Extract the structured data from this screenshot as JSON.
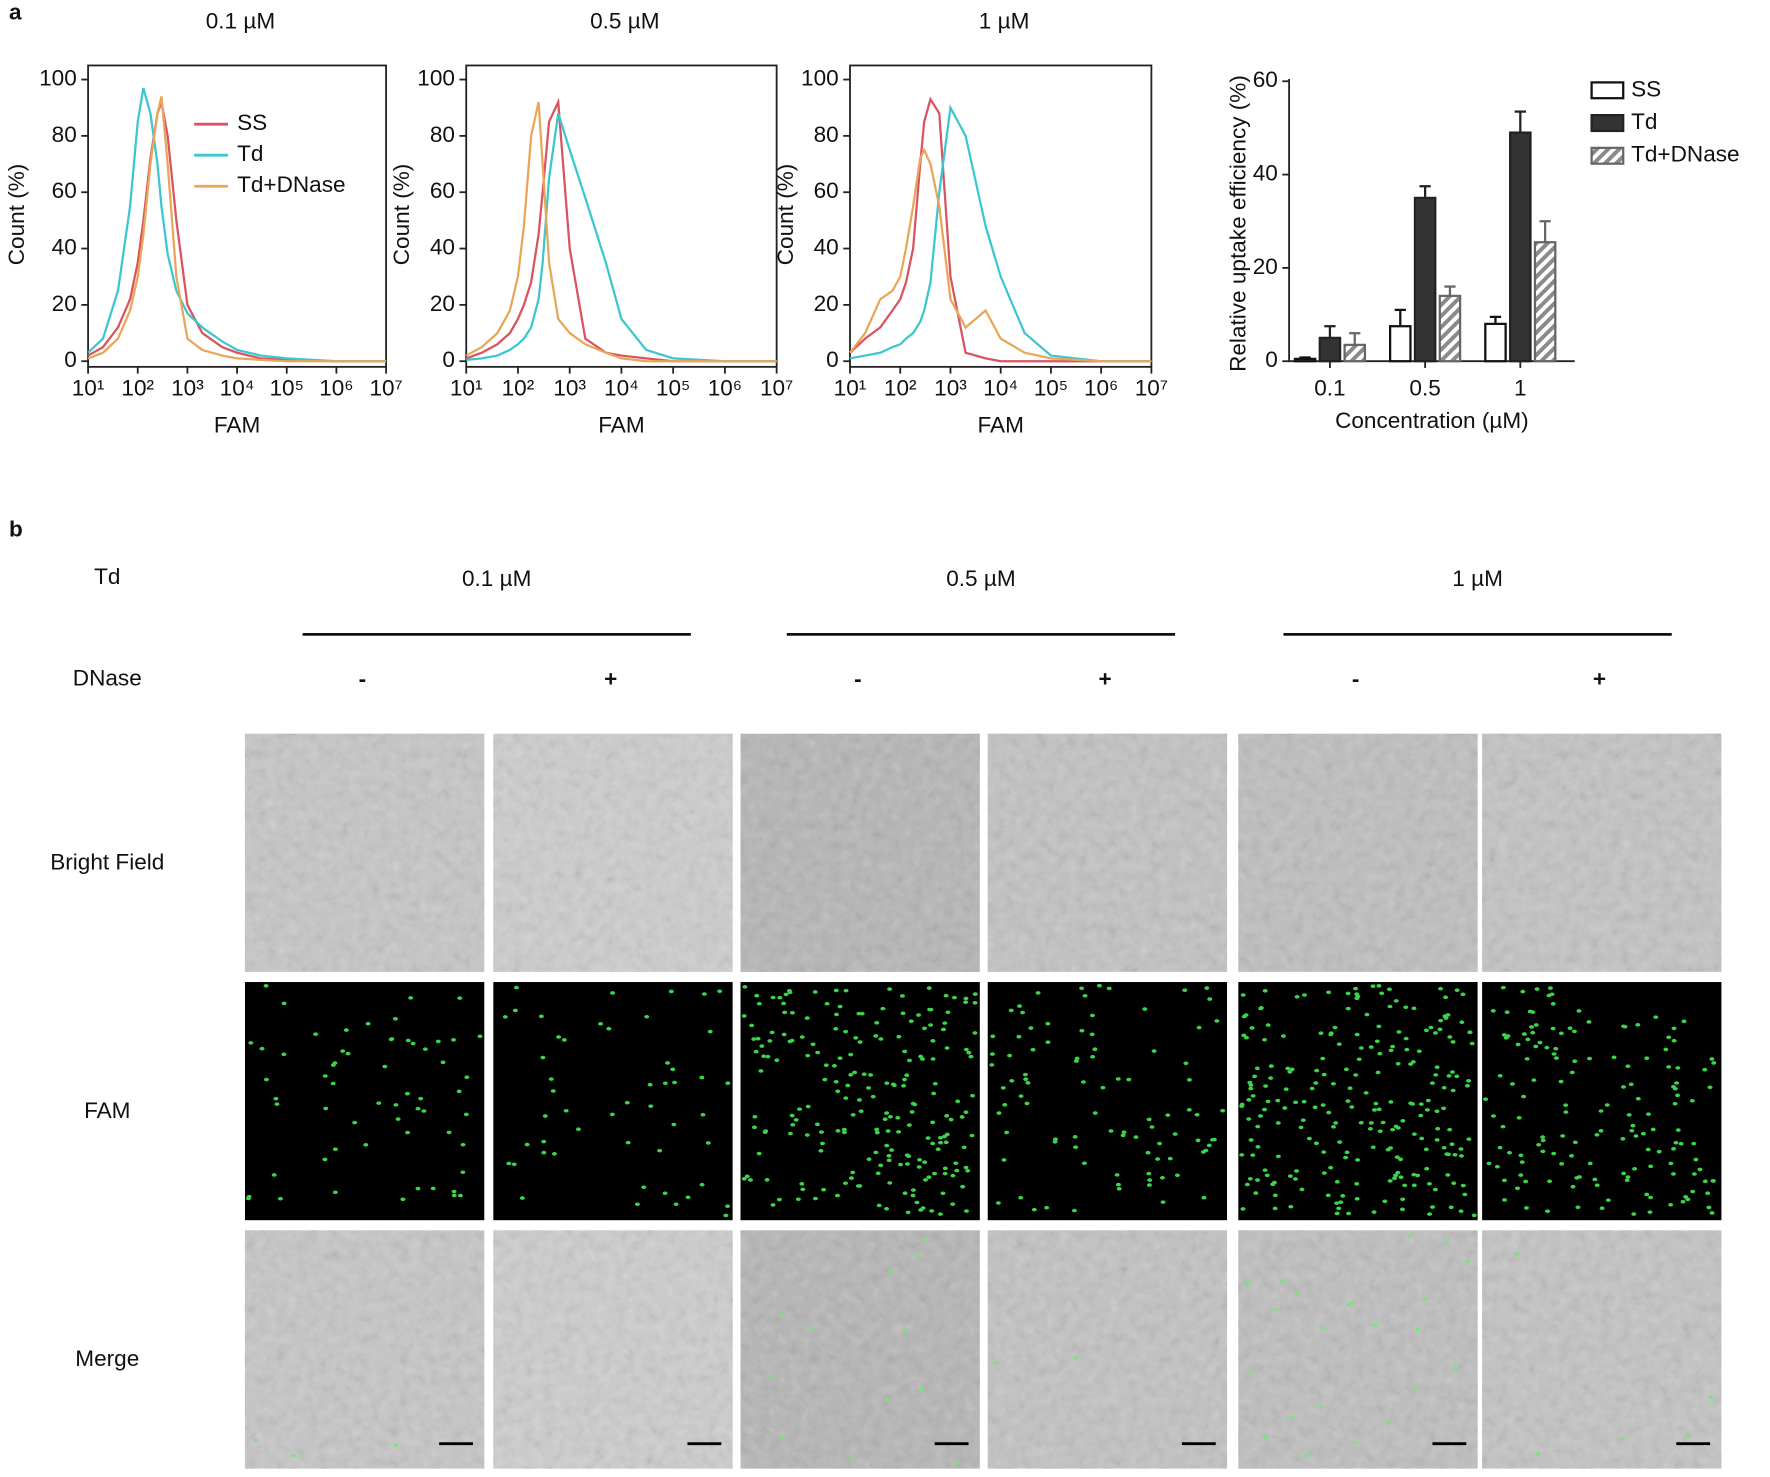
{
  "panel_a": {
    "label": "a"
  },
  "chart_data": [
    {
      "type": "line",
      "title": "0.1 µM",
      "xlabel": "FAM",
      "ylabel": "Count (%)",
      "xscale": "log",
      "legend": true,
      "legend_position": "upper right",
      "x": [
        10,
        20,
        40,
        70,
        100,
        130,
        180,
        250,
        300,
        400,
        600,
        1000,
        2000,
        5000,
        10000,
        30000,
        100000,
        1000000,
        10000000
      ],
      "series": [
        {
          "name": "SS",
          "color": "#d9545f",
          "values": [
            2,
            5,
            12,
            22,
            35,
            50,
            72,
            88,
            92,
            80,
            50,
            20,
            10,
            5,
            3,
            1,
            0.5,
            0,
            0
          ]
        },
        {
          "name": "Td",
          "color": "#3cc6d0",
          "values": [
            3,
            8,
            25,
            55,
            85,
            97,
            88,
            70,
            55,
            38,
            25,
            17,
            12,
            7,
            4,
            2,
            1,
            0,
            0
          ]
        },
        {
          "name": "Td+DNase",
          "color": "#e8a65a",
          "values": [
            1,
            3,
            8,
            18,
            30,
            45,
            70,
            88,
            94,
            70,
            30,
            8,
            4,
            2,
            1,
            0.5,
            0,
            0,
            0
          ]
        }
      ],
      "xlim": [
        10,
        10000000
      ],
      "xticks": [
        {
          "value": 10,
          "label": "10¹"
        },
        {
          "value": 100,
          "label": "10²"
        },
        {
          "value": 1000,
          "label": "10³"
        },
        {
          "value": 10000,
          "label": "10⁴"
        },
        {
          "value": 100000,
          "label": "10⁵"
        },
        {
          "value": 1000000,
          "label": "10⁶"
        },
        {
          "value": 10000000,
          "label": "10⁷"
        }
      ],
      "ylim": [
        -2,
        105
      ],
      "yticks": [
        0,
        20,
        40,
        60,
        80,
        100
      ]
    },
    {
      "type": "line",
      "title": "0.5 µM",
      "xlabel": "FAM",
      "ylabel": "Count (%)",
      "xscale": "log",
      "legend": false,
      "x": [
        10,
        20,
        40,
        70,
        100,
        130,
        180,
        250,
        300,
        400,
        600,
        1000,
        2000,
        5000,
        10000,
        30000,
        100000,
        1000000,
        10000000
      ],
      "series": [
        {
          "color": "#d9545f",
          "values": [
            1,
            3,
            6,
            10,
            15,
            20,
            28,
            45,
            60,
            85,
            92,
            40,
            8,
            3,
            2,
            1,
            0,
            0,
            0
          ]
        },
        {
          "color": "#3cc6d0",
          "values": [
            0.5,
            1,
            2,
            4,
            6,
            8,
            12,
            22,
            35,
            65,
            88,
            75,
            58,
            35,
            15,
            4,
            1,
            0,
            0
          ]
        },
        {
          "color": "#e8a65a",
          "values": [
            2,
            5,
            10,
            18,
            30,
            48,
            80,
            92,
            70,
            35,
            15,
            10,
            6,
            3,
            1,
            0,
            0,
            0,
            0
          ]
        }
      ],
      "xlim": [
        10,
        10000000
      ],
      "xticks": [
        {
          "value": 10,
          "label": "10¹"
        },
        {
          "value": 100,
          "label": "10²"
        },
        {
          "value": 1000,
          "label": "10³"
        },
        {
          "value": 10000,
          "label": "10⁴"
        },
        {
          "value": 100000,
          "label": "10⁵"
        },
        {
          "value": 1000000,
          "label": "10⁶"
        },
        {
          "value": 10000000,
          "label": "10⁷"
        }
      ],
      "ylim": [
        -2,
        105
      ],
      "yticks": [
        0,
        20,
        40,
        60,
        80,
        100
      ]
    },
    {
      "type": "line",
      "title": "1 µM",
      "xlabel": "FAM",
      "ylabel": "Count (%)",
      "xscale": "log",
      "legend": false,
      "x": [
        10,
        20,
        40,
        70,
        100,
        130,
        180,
        250,
        300,
        400,
        600,
        1000,
        2000,
        5000,
        10000,
        30000,
        100000,
        1000000,
        10000000
      ],
      "series": [
        {
          "color": "#d9545f",
          "values": [
            3,
            8,
            12,
            18,
            22,
            28,
            40,
            70,
            85,
            93,
            88,
            30,
            3,
            1,
            0,
            0,
            0,
            0,
            0
          ]
        },
        {
          "color": "#3cc6d0",
          "values": [
            1,
            2,
            3,
            5,
            6,
            8,
            10,
            14,
            18,
            28,
            60,
            90,
            80,
            48,
            30,
            10,
            2,
            0,
            0
          ]
        },
        {
          "color": "#e8a65a",
          "values": [
            3,
            10,
            22,
            25,
            30,
            40,
            55,
            72,
            75,
            70,
            55,
            22,
            12,
            18,
            8,
            3,
            1,
            0,
            0
          ]
        }
      ],
      "xlim": [
        10,
        10000000
      ],
      "xticks": [
        {
          "value": 10,
          "label": "10¹"
        },
        {
          "value": 100,
          "label": "10²"
        },
        {
          "value": 1000,
          "label": "10³"
        },
        {
          "value": 10000,
          "label": "10⁴"
        },
        {
          "value": 100000,
          "label": "10⁵"
        },
        {
          "value": 1000000,
          "label": "10⁶"
        },
        {
          "value": 10000000,
          "label": "10⁷"
        }
      ],
      "ylim": [
        -2,
        105
      ],
      "yticks": [
        0,
        20,
        40,
        60,
        80,
        100
      ]
    },
    {
      "type": "bar",
      "xlabel": "Concentration (µM)",
      "ylabel": "Relative uptake efficiency (%)",
      "legend": true,
      "legend_position": "upper right outside",
      "categories": [
        "0.1",
        "0.5",
        "1"
      ],
      "series": [
        {
          "name": "SS",
          "color": "#ffffff",
          "edge": "#111111",
          "hatch": false,
          "values": [
            0.5,
            7.5,
            8
          ],
          "errors": [
            0.3,
            3.5,
            1.5
          ]
        },
        {
          "name": "Td",
          "color": "#333333",
          "edge": "#222222",
          "hatch": false,
          "values": [
            5,
            35,
            49
          ],
          "errors": [
            2.5,
            2.5,
            4.5
          ]
        },
        {
          "name": "Td+DNase",
          "color": "#8a8a8a",
          "edge": "#666666",
          "hatch": true,
          "values": [
            3.5,
            14,
            25.5
          ],
          "errors": [
            2.5,
            2,
            4.5
          ]
        }
      ],
      "ylim": [
        0,
        60
      ],
      "yticks": [
        0,
        20,
        40,
        60
      ]
    }
  ],
  "panel_b": {
    "label": "b",
    "treatment_label": "Td",
    "concentrations": [
      "0.1 µM",
      "0.5 µM",
      "1 µM"
    ],
    "dnase_label": "DNase",
    "dnase_states": [
      "-",
      "+",
      "-",
      "+",
      "-",
      "+"
    ],
    "rows": [
      "Bright Field",
      "FAM",
      "Merge"
    ]
  }
}
